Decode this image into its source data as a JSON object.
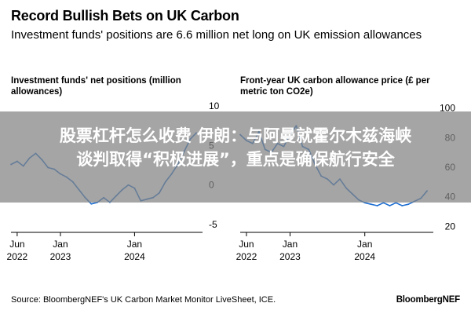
{
  "header": {
    "title": "Record Bullish Bets on UK Carbon",
    "subtitle": "Investment funds' positions are 6.6 million net long on UK emission allowances"
  },
  "footer": {
    "source": "Source: BloombergNEF's UK Carbon Market Monitor LiveSheet, ICE.",
    "brand": "BloombergNEF"
  },
  "overlay": {
    "line1": "股票杠杆怎么收费 伊朗：与阿曼就霍尔木兹海峡",
    "line2": "谈判取得“积极进展”，重点是确保航行安全"
  },
  "colors": {
    "line": "#1f6fd1",
    "axis": "#000000",
    "overlay": "#808080"
  },
  "chart_data": [
    {
      "type": "line",
      "title": "Investment funds' net positions (million allowances)",
      "x_ticks": [
        {
          "label": "Jun",
          "sub": "2022",
          "date": "2022-06"
        },
        {
          "label": "Jan",
          "sub": "2023",
          "date": "2023-01"
        },
        {
          "label": "Jan",
          "sub": "2024",
          "date": "2024-01"
        }
      ],
      "xlim": [
        "2022-05",
        "2024-12"
      ],
      "y_ticks": [
        "10",
        "5",
        "0",
        "-5"
      ],
      "ylim": [
        -6,
        10.5
      ],
      "series": [
        {
          "values": [
            [
              "2022-05",
              2.6
            ],
            [
              "2022-06",
              3.0
            ],
            [
              "2022-07",
              2.4
            ],
            [
              "2022-08",
              3.4
            ],
            [
              "2022-09",
              4.0
            ],
            [
              "2022-10",
              3.2
            ],
            [
              "2022-11",
              2.2
            ],
            [
              "2022-12",
              2.0
            ],
            [
              "2023-01",
              1.4
            ],
            [
              "2023-02",
              1.0
            ],
            [
              "2023-03",
              0.4
            ],
            [
              "2023-04",
              -0.6
            ],
            [
              "2023-05",
              -1.6
            ],
            [
              "2023-06",
              -2.4
            ],
            [
              "2023-07",
              -2.2
            ],
            [
              "2023-08",
              -1.6
            ],
            [
              "2023-09",
              -2.2
            ],
            [
              "2023-10",
              -1.4
            ],
            [
              "2023-11",
              -0.6
            ],
            [
              "2023-12",
              0.0
            ],
            [
              "2024-01",
              -0.4
            ],
            [
              "2024-02",
              -2.0
            ],
            [
              "2024-03",
              -1.8
            ],
            [
              "2024-04",
              -1.6
            ],
            [
              "2024-05",
              -1.0
            ],
            [
              "2024-06",
              0.4
            ],
            [
              "2024-07",
              1.4
            ],
            [
              "2024-08",
              2.6
            ],
            [
              "2024-09",
              4.2
            ],
            [
              "2024-10",
              5.8
            ],
            [
              "2024-11",
              6.6
            ]
          ]
        }
      ]
    },
    {
      "type": "line",
      "title": "Front-year UK carbon allowance price (£ per metric ton CO2e)",
      "x_ticks": [
        {
          "label": "Jun",
          "sub": "2022",
          "date": "2022-06"
        },
        {
          "label": "Jan",
          "sub": "2023",
          "date": "2023-01"
        },
        {
          "label": "Jan",
          "sub": "2024",
          "date": "2024-01"
        }
      ],
      "xlim": [
        "2022-05",
        "2024-12"
      ],
      "y_ticks": [
        "100",
        "80",
        "60",
        "40",
        "20"
      ],
      "ylim": [
        16,
        104
      ],
      "series": [
        {
          "values": [
            [
              "2022-05",
              82
            ],
            [
              "2022-06",
              78
            ],
            [
              "2022-07",
              76
            ],
            [
              "2022-08",
              84
            ],
            [
              "2022-09",
              72
            ],
            [
              "2022-10",
              70
            ],
            [
              "2022-11",
              76
            ],
            [
              "2022-12",
              74
            ],
            [
              "2023-01",
              82
            ],
            [
              "2023-02",
              88
            ],
            [
              "2023-03",
              74
            ],
            [
              "2023-04",
              72
            ],
            [
              "2023-05",
              62
            ],
            [
              "2023-06",
              54
            ],
            [
              "2023-07",
              52
            ],
            [
              "2023-08",
              48
            ],
            [
              "2023-09",
              52
            ],
            [
              "2023-10",
              46
            ],
            [
              "2023-11",
              42
            ],
            [
              "2023-12",
              38
            ],
            [
              "2024-01",
              36
            ],
            [
              "2024-02",
              35
            ],
            [
              "2024-03",
              34
            ],
            [
              "2024-04",
              36
            ],
            [
              "2024-05",
              34
            ],
            [
              "2024-06",
              36
            ],
            [
              "2024-07",
              34
            ],
            [
              "2024-08",
              35
            ],
            [
              "2024-09",
              37
            ],
            [
              "2024-10",
              39
            ],
            [
              "2024-11",
              44
            ]
          ]
        }
      ]
    }
  ]
}
